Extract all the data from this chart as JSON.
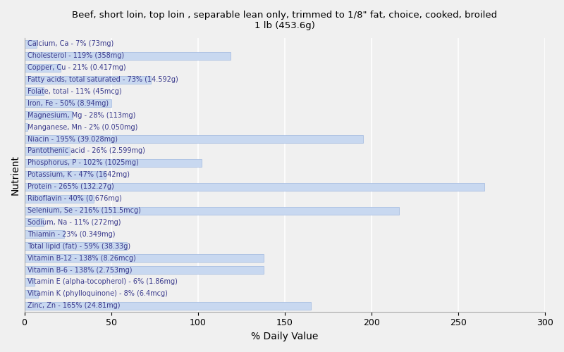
{
  "title": "Beef, short loin, top loin , separable lean only, trimmed to 1/8\" fat, choice, cooked, broiled\n1 lb (453.6g)",
  "xlabel": "% Daily Value",
  "ylabel": "Nutrient",
  "xlim": [
    0,
    300
  ],
  "xticks": [
    0,
    50,
    100,
    150,
    200,
    250,
    300
  ],
  "background_color": "#f0f0f0",
  "bar_color": "#c8d8f0",
  "bar_edge_color": "#a0b8e0",
  "nutrients": [
    {
      "name": "Calcium, Ca - 7% (73mg)",
      "value": 7
    },
    {
      "name": "Cholesterol - 119% (358mg)",
      "value": 119
    },
    {
      "name": "Copper, Cu - 21% (0.417mg)",
      "value": 21
    },
    {
      "name": "Fatty acids, total saturated - 73% (14.592g)",
      "value": 73
    },
    {
      "name": "Folate, total - 11% (45mcg)",
      "value": 11
    },
    {
      "name": "Iron, Fe - 50% (8.94mg)",
      "value": 50
    },
    {
      "name": "Magnesium, Mg - 28% (113mg)",
      "value": 28
    },
    {
      "name": "Manganese, Mn - 2% (0.050mg)",
      "value": 2
    },
    {
      "name": "Niacin - 195% (39.028mg)",
      "value": 195
    },
    {
      "name": "Pantothenic acid - 26% (2.599mg)",
      "value": 26
    },
    {
      "name": "Phosphorus, P - 102% (1025mg)",
      "value": 102
    },
    {
      "name": "Potassium, K - 47% (1642mg)",
      "value": 47
    },
    {
      "name": "Protein - 265% (132.27g)",
      "value": 265
    },
    {
      "name": "Riboflavin - 40% (0.676mg)",
      "value": 40
    },
    {
      "name": "Selenium, Se - 216% (151.5mcg)",
      "value": 216
    },
    {
      "name": "Sodium, Na - 11% (272mg)",
      "value": 11
    },
    {
      "name": "Thiamin - 23% (0.349mg)",
      "value": 23
    },
    {
      "name": "Total lipid (fat) - 59% (38.33g)",
      "value": 59
    },
    {
      "name": "Vitamin B-12 - 138% (8.26mcg)",
      "value": 138
    },
    {
      "name": "Vitamin B-6 - 138% (2.753mg)",
      "value": 138
    },
    {
      "name": "Vitamin E (alpha-tocopherol) - 6% (1.86mg)",
      "value": 6
    },
    {
      "name": "Vitamin K (phylloquinone) - 8% (6.4mcg)",
      "value": 8
    },
    {
      "name": "Zinc, Zn - 165% (24.81mg)",
      "value": 165
    }
  ],
  "text_color": "#3a3a8c",
  "title_fontsize": 9.5,
  "label_fontsize": 7.0,
  "axis_label_fontsize": 10
}
